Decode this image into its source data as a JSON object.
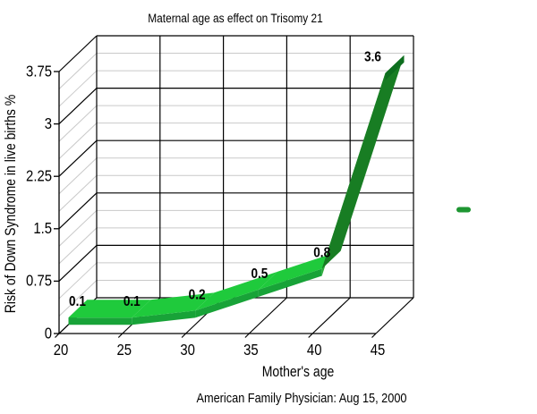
{
  "chart_data": {
    "type": "line",
    "style": "3d-ribbon",
    "title": "Maternal age as effect on Trisomy 21",
    "xlabel": "Mother's age",
    "ylabel": "Risk of Down Syndrome in live births %",
    "caption": "American Family Physician: Aug 15, 2000",
    "categories": [
      "20",
      "25",
      "30",
      "35",
      "40",
      "45"
    ],
    "series": [
      {
        "name": "Risk of Down Syndrome in live births %",
        "values": [
          0.1,
          0.1,
          0.2,
          0.5,
          0.8,
          3.6
        ]
      }
    ],
    "data_labels": [
      "0.1",
      "0.1",
      "0.2",
      "0.5",
      "0.8",
      "3.6"
    ],
    "ylim": [
      0,
      3.75
    ],
    "y_major_ticks": [
      0,
      0.75,
      1.5,
      2.25,
      3,
      3.75
    ],
    "y_tick_labels": [
      "0",
      "0.75",
      "1.5",
      "2.25",
      "3",
      "3.75"
    ],
    "y_major_step": 0.75,
    "y_minor_step": 0.25,
    "grid": "major-black-minor-gray",
    "legend_position": "right-middle",
    "legend_label": ""
  },
  "colors": {
    "background": "#ffffff",
    "text": "#000000",
    "grid_major": "#000000",
    "grid_minor": "#c9c9c9",
    "ribbon_top": "#1fca3c",
    "ribbon_front": "#18a338",
    "ribbon_steep_top": "#187d23",
    "ribbon_steep_edge": "#2eac3a",
    "ribbon_left_cap": "#128a2c",
    "ribbon_end_cap": "#0d6e1e",
    "legend_marker": "#1e9632"
  }
}
